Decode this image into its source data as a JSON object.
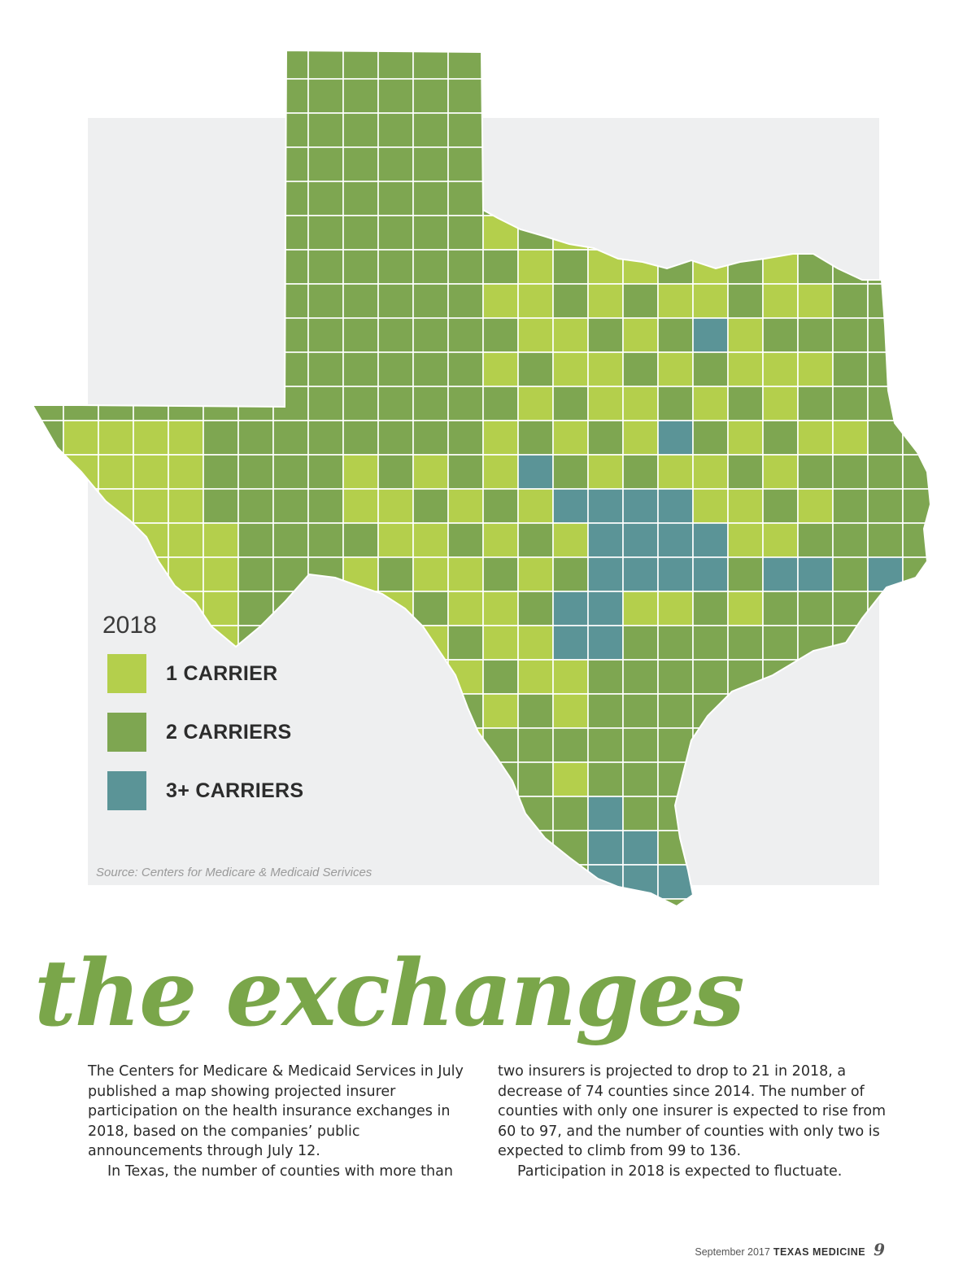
{
  "map": {
    "legend": {
      "year": "2018",
      "items": [
        {
          "label": "1 CARRIER",
          "color": "#b4cf4c"
        },
        {
          "label": "2 CARRIERS",
          "color": "#7ea651"
        },
        {
          "label": "3+ CARRIERS",
          "color": "#5b9497"
        }
      ]
    },
    "source": "Source: Centers for Medicare & Medicaid Serivices",
    "background_color": "#eeeff0",
    "border_color": "#ffffff"
  },
  "headline": "the exchanges",
  "body": {
    "left": [
      "The Centers for Medicare & Medicaid Services in July published a map showing projected insurer participation on the health insurance exchanges in 2018, based on the companies’ public announcements through July 12.",
      "In Texas, the number of counties with more than"
    ],
    "right": [
      "two insurers is projected to drop to 21 in 2018, a decrease of 74 counties since 2014. The number of counties with only one insurer is expected to rise from 60 to 97, and the number of counties with only two is expected to climb from 99 to 136.",
      "Participation in 2018 is expected to fluctuate."
    ]
  },
  "footer": {
    "date": "September 2017",
    "magazine": "TEXAS MEDICINE",
    "page": "9"
  }
}
